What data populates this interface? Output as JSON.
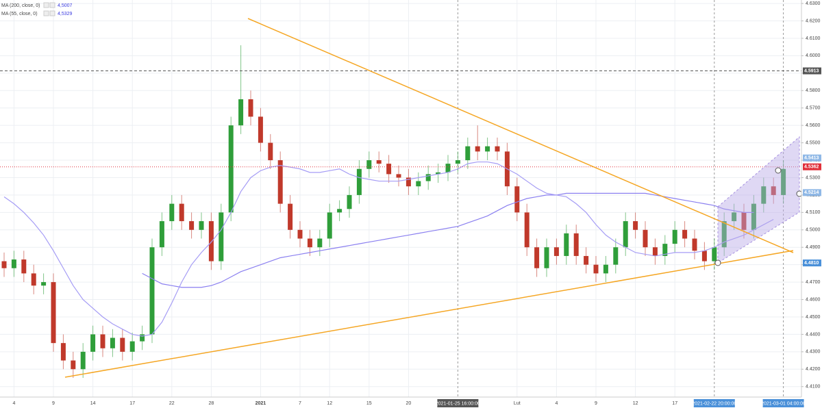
{
  "chart_data": {
    "type": "candlestick",
    "categories": [
      null,
      "4",
      null,
      null,
      null,
      "9",
      null,
      null,
      null,
      "14",
      null,
      null,
      null,
      "17",
      null,
      null,
      null,
      "22",
      null,
      null,
      null,
      "28",
      null,
      null,
      null,
      null,
      "2021",
      null,
      null,
      null,
      "7",
      null,
      null,
      "12",
      null,
      null,
      null,
      "15",
      null,
      null,
      null,
      "20",
      null,
      null,
      null,
      null,
      null,
      null,
      null,
      null,
      null,
      null,
      "Lut",
      null,
      null,
      null,
      "4",
      null,
      null,
      null,
      "9",
      null,
      null,
      null,
      "12",
      null,
      null,
      null,
      "17",
      null,
      null,
      null,
      null,
      null,
      null,
      null,
      null,
      null,
      null,
      null
    ],
    "x_highlights": [
      null,
      null,
      null,
      null,
      null,
      null,
      null,
      null,
      null,
      null,
      null,
      null,
      null,
      null,
      null,
      null,
      null,
      null,
      null,
      null,
      null,
      null,
      null,
      null,
      null,
      null,
      null,
      null,
      null,
      null,
      null,
      null,
      null,
      null,
      null,
      null,
      null,
      null,
      null,
      null,
      null,
      null,
      null,
      null,
      null,
      null,
      "2021-01-25 16:00:00",
      null,
      null,
      null,
      null,
      null,
      null,
      null,
      null,
      null,
      null,
      null,
      null,
      null,
      null,
      null,
      null,
      null,
      null,
      null,
      null,
      null,
      null,
      null,
      null,
      null,
      "2021-02-22 20:00:00",
      null,
      null,
      null,
      null,
      null,
      null,
      "2021-03-01 04:00:00"
    ],
    "open": [
      4.482,
      4.478,
      4.483,
      4.475,
      4.468,
      4.47,
      4.435,
      4.425,
      4.42,
      4.43,
      4.44,
      4.432,
      4.438,
      4.43,
      4.436,
      4.44,
      4.49,
      4.505,
      4.515,
      4.505,
      4.5,
      4.505,
      4.482,
      4.51,
      4.56,
      4.575,
      4.565,
      4.55,
      4.54,
      4.515,
      4.5,
      4.495,
      4.49,
      4.495,
      4.51,
      4.512,
      4.52,
      4.535,
      4.54,
      4.538,
      4.532,
      4.53,
      4.525,
      4.528,
      4.532,
      4.533,
      4.538,
      4.54,
      4.548,
      4.545,
      4.548,
      4.545,
      4.525,
      4.51,
      4.49,
      4.478,
      4.49,
      4.485,
      4.498,
      4.485,
      4.48,
      4.475,
      4.48,
      4.49,
      4.505,
      4.5,
      4.49,
      4.485,
      4.492,
      4.5,
      4.495,
      4.488,
      4.482,
      4.49,
      4.505,
      4.51,
      4.5,
      4.515,
      4.525,
      4.52
    ],
    "high": [
      4.487,
      4.488,
      4.488,
      4.48,
      4.475,
      4.475,
      4.44,
      4.43,
      4.435,
      4.445,
      4.445,
      4.443,
      4.443,
      4.441,
      4.445,
      4.495,
      4.51,
      4.52,
      4.52,
      4.51,
      4.51,
      4.51,
      4.515,
      4.565,
      4.606,
      4.58,
      4.57,
      4.555,
      4.545,
      4.52,
      4.505,
      4.5,
      4.5,
      4.515,
      4.517,
      4.525,
      4.54,
      4.545,
      4.545,
      4.543,
      4.537,
      4.535,
      4.533,
      4.537,
      4.538,
      4.543,
      4.545,
      4.553,
      4.56,
      4.553,
      4.553,
      4.55,
      4.53,
      4.515,
      4.495,
      4.495,
      4.495,
      4.503,
      4.503,
      4.49,
      4.485,
      4.485,
      4.495,
      4.51,
      4.51,
      4.505,
      4.495,
      4.497,
      4.505,
      4.505,
      4.5,
      4.493,
      4.495,
      4.51,
      4.515,
      4.515,
      4.52,
      4.53,
      4.53,
      4.54
    ],
    "low": [
      4.473,
      4.473,
      4.47,
      4.463,
      4.463,
      4.43,
      4.42,
      4.415,
      4.415,
      4.425,
      4.427,
      4.427,
      4.425,
      4.425,
      4.431,
      4.435,
      4.485,
      4.5,
      4.5,
      4.495,
      4.495,
      4.477,
      4.477,
      4.505,
      4.555,
      4.56,
      4.545,
      4.535,
      4.51,
      4.495,
      4.49,
      4.485,
      4.485,
      4.49,
      4.505,
      4.507,
      4.515,
      4.53,
      4.533,
      4.527,
      4.525,
      4.52,
      4.52,
      4.523,
      4.527,
      4.528,
      4.533,
      4.535,
      4.54,
      4.54,
      4.54,
      4.52,
      4.505,
      4.485,
      4.473,
      4.473,
      4.48,
      4.48,
      4.48,
      4.475,
      4.47,
      4.47,
      4.475,
      4.485,
      4.495,
      4.485,
      4.48,
      4.48,
      4.487,
      4.49,
      4.483,
      4.477,
      4.477,
      4.485,
      4.5,
      4.495,
      4.495,
      4.51,
      4.515,
      4.515
    ],
    "close": [
      4.478,
      4.483,
      4.475,
      4.468,
      4.47,
      4.435,
      4.425,
      4.42,
      4.43,
      4.44,
      4.432,
      4.438,
      4.43,
      4.436,
      4.44,
      4.49,
      4.505,
      4.515,
      4.505,
      4.5,
      4.505,
      4.482,
      4.51,
      4.56,
      4.575,
      4.565,
      4.55,
      4.54,
      4.515,
      4.5,
      4.495,
      4.49,
      4.495,
      4.51,
      4.512,
      4.52,
      4.535,
      4.54,
      4.538,
      4.532,
      4.53,
      4.525,
      4.528,
      4.532,
      4.533,
      4.538,
      4.54,
      4.548,
      4.545,
      4.548,
      4.545,
      4.525,
      4.51,
      4.49,
      4.478,
      4.49,
      4.485,
      4.498,
      4.485,
      4.48,
      4.475,
      4.48,
      4.49,
      4.505,
      4.5,
      4.49,
      4.485,
      4.492,
      4.5,
      4.495,
      4.488,
      4.482,
      4.49,
      4.505,
      4.51,
      4.5,
      4.515,
      4.525,
      4.52,
      4.535
    ],
    "up_color": "#2f9e3a",
    "down_color": "#c0392b",
    "series": [
      {
        "name": "MA (200, close, 0)",
        "color": "#8a7ff0",
        "last_value": 4.5007,
        "last_label": "4,5007",
        "values": [
          null,
          null,
          null,
          null,
          null,
          null,
          null,
          null,
          null,
          null,
          null,
          null,
          null,
          null,
          4.475,
          4.472,
          4.469,
          4.468,
          4.467,
          4.467,
          4.467,
          4.468,
          4.47,
          4.473,
          4.476,
          4.478,
          4.48,
          4.482,
          4.484,
          4.485,
          4.486,
          4.487,
          4.488,
          4.489,
          4.49,
          4.491,
          4.492,
          4.493,
          4.494,
          4.495,
          4.496,
          4.497,
          4.498,
          4.499,
          4.5,
          4.501,
          4.502,
          4.504,
          4.506,
          4.508,
          4.511,
          4.514,
          4.516,
          4.518,
          4.519,
          4.52,
          4.52,
          4.521,
          4.521,
          4.521,
          4.521,
          4.521,
          4.521,
          4.521,
          4.521,
          4.521,
          4.52,
          4.519,
          4.518,
          4.517,
          4.516,
          4.515,
          4.514,
          4.512,
          4.511,
          4.51,
          4.51,
          null,
          null,
          null
        ]
      },
      {
        "name": "MA (55, close, 0)",
        "color": "#a59cf5",
        "last_value": 4.5329,
        "last_label": "4,5329",
        "values": [
          4.519,
          4.515,
          4.51,
          4.504,
          4.497,
          4.488,
          4.478,
          4.468,
          4.46,
          4.455,
          4.45,
          4.446,
          4.443,
          4.44,
          4.439,
          4.44,
          4.447,
          4.458,
          4.47,
          4.48,
          4.487,
          4.493,
          4.5,
          4.51,
          4.522,
          4.53,
          4.534,
          4.536,
          4.537,
          4.536,
          4.535,
          4.533,
          4.533,
          4.534,
          4.535,
          4.532,
          4.53,
          4.529,
          4.528,
          4.528,
          4.528,
          4.529,
          4.53,
          4.531,
          4.532,
          4.533,
          4.535,
          4.538,
          4.539,
          4.539,
          4.538,
          4.535,
          4.532,
          4.528,
          4.524,
          4.521,
          4.52,
          4.519,
          4.515,
          4.51,
          4.503,
          4.497,
          4.493,
          4.49,
          4.487,
          4.486,
          4.485,
          4.486,
          4.487,
          4.487,
          4.487,
          4.488,
          4.49,
          4.493,
          4.495,
          4.497,
          4.5,
          4.503,
          4.506,
          null
        ]
      }
    ],
    "ylim": [
      4.404,
      4.632
    ],
    "yticks": [
      {
        "value": 4.41,
        "label": "4.4100"
      },
      {
        "value": 4.42,
        "label": "4.4200"
      },
      {
        "value": 4.43,
        "label": "4.4300"
      },
      {
        "value": 4.44,
        "label": "4.4400"
      },
      {
        "value": 4.45,
        "label": "4.4500"
      },
      {
        "value": 4.46,
        "label": "4.4600"
      },
      {
        "value": 4.47,
        "label": "4.4700"
      },
      {
        "value": 4.48,
        "label": "4.4800"
      },
      {
        "value": 4.49,
        "label": "4.4900"
      },
      {
        "value": 4.5,
        "label": "4.5000"
      },
      {
        "value": 4.51,
        "label": "4.5100"
      },
      {
        "value": 4.52,
        "label": "4.5200"
      },
      {
        "value": 4.53,
        "label": "4.5300"
      },
      {
        "value": 4.54,
        "label": "4.5400"
      },
      {
        "value": 4.55,
        "label": "4.5500"
      },
      {
        "value": 4.56,
        "label": "4.5600"
      },
      {
        "value": 4.57,
        "label": "4.5700"
      },
      {
        "value": 4.58,
        "label": "4.5800"
      },
      {
        "value": 4.59,
        "label": "4.5900"
      },
      {
        "value": 4.6,
        "label": "4.6000"
      },
      {
        "value": 4.61,
        "label": "4.6100"
      },
      {
        "value": 4.62,
        "label": "4.6200"
      },
      {
        "value": 4.63,
        "label": "4.6300"
      }
    ],
    "grid": true,
    "markers": [
      {
        "value": 4.5913,
        "color": "#555555",
        "line": "dashed"
      },
      {
        "value": 4.5413,
        "color": "#8fb8e6"
      },
      {
        "value": 4.5362,
        "color": "#e0303a",
        "line": "dotted"
      },
      {
        "value": 4.5214,
        "color": "#8fb8e6"
      },
      {
        "value": 4.481,
        "label": "4.4810",
        "color": "#4a90d9"
      }
    ]
  }
}
